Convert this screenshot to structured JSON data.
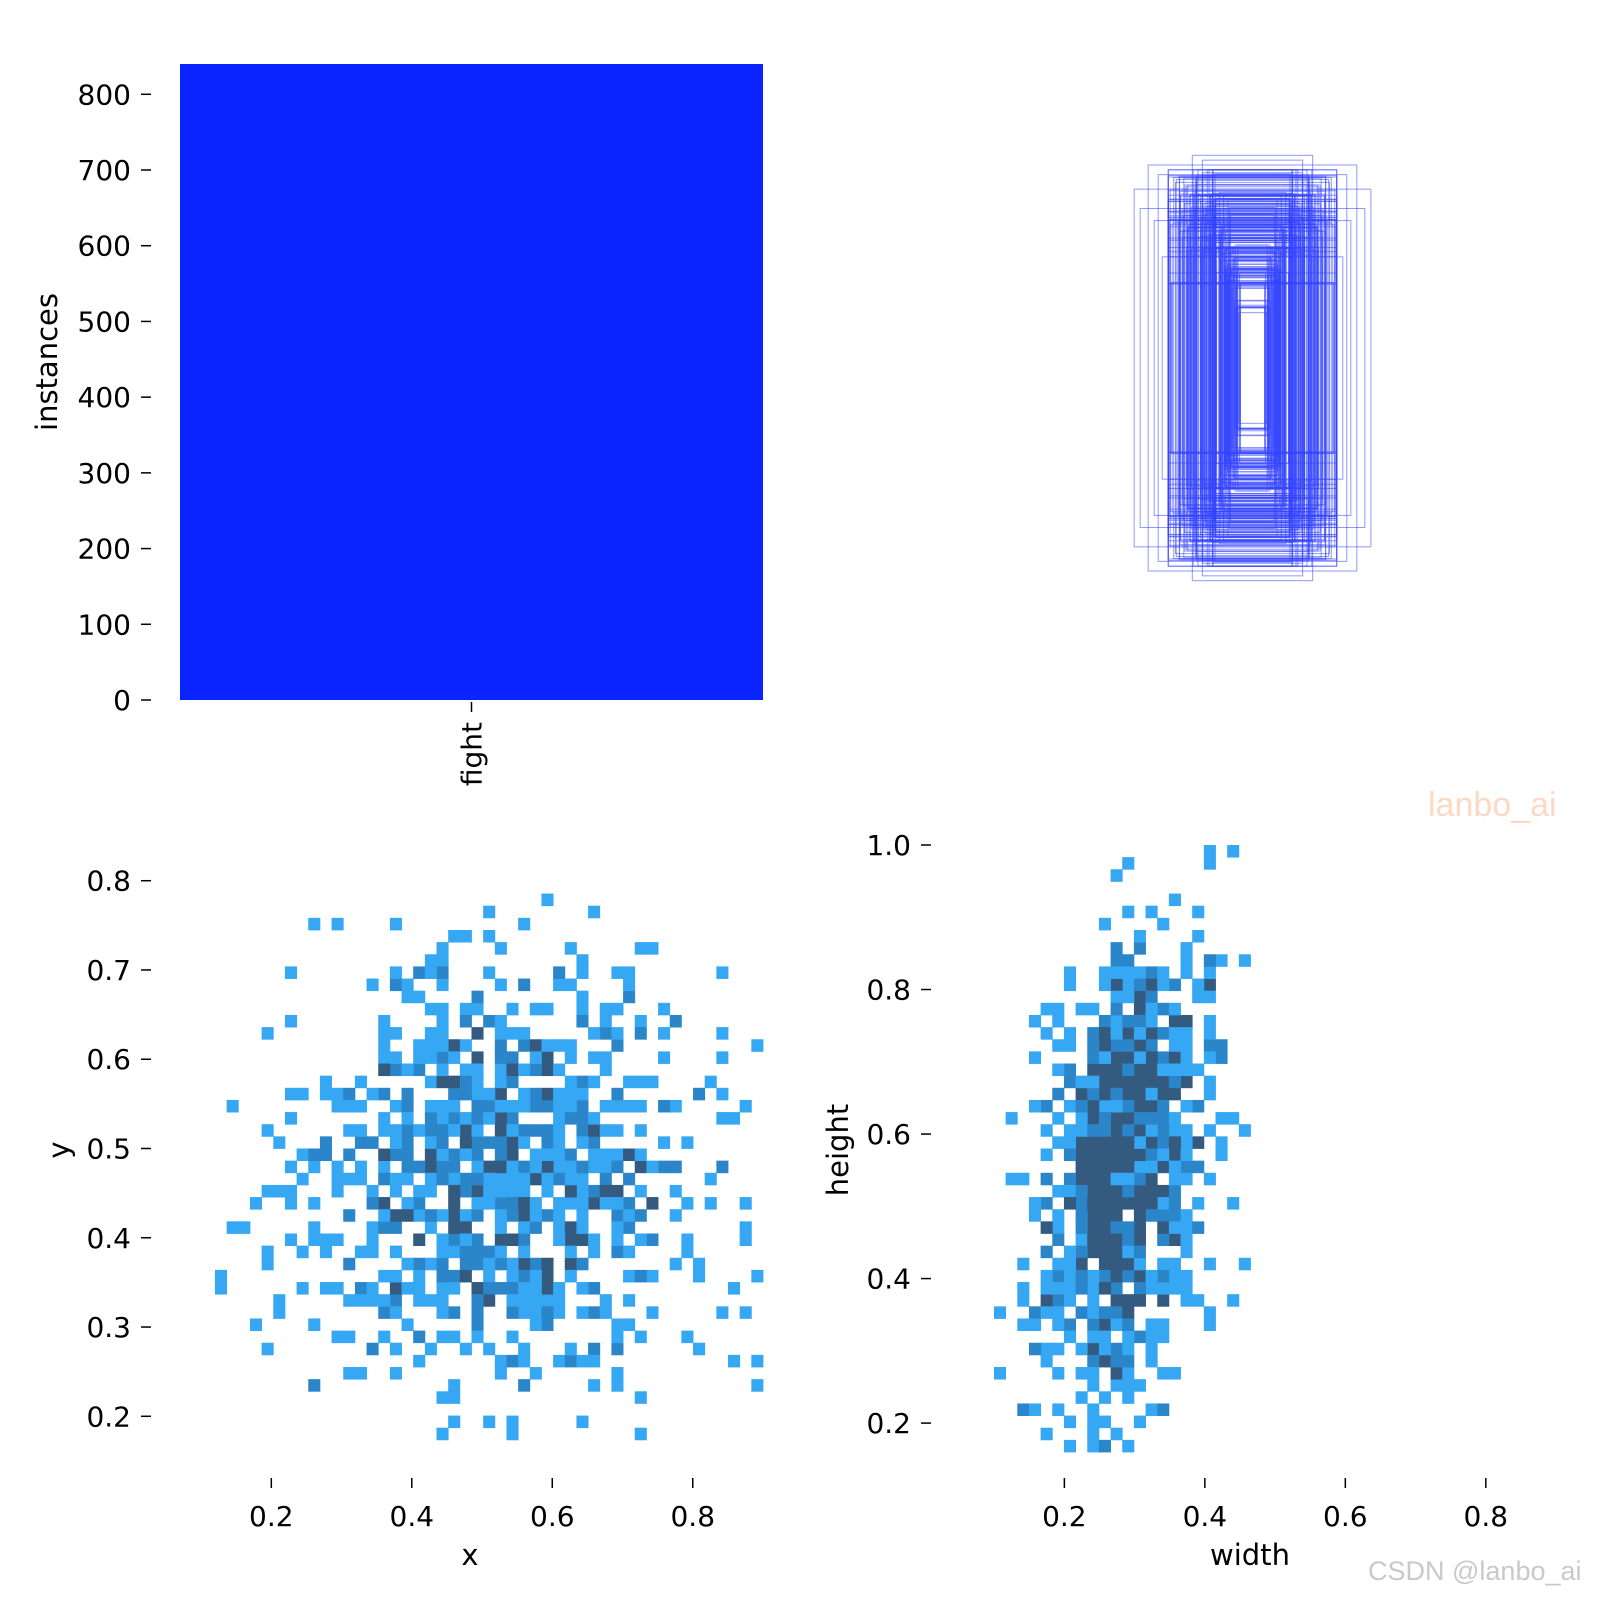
{
  "colors": {
    "bar": "#0a24ff",
    "box_stroke": "#3344ff",
    "hist_light": "#36a7f2",
    "hist_mid": "#2a86c8",
    "hist_dark": "#355a80",
    "axis": "#000000"
  },
  "chart_data": [
    {
      "type": "bar",
      "categories": [
        "fight"
      ],
      "values": [
        840
      ],
      "xlabel": "",
      "ylabel": "instances",
      "ylim": [
        0,
        840
      ],
      "yticks": [
        "0",
        "100",
        "200",
        "300",
        "400",
        "500",
        "600",
        "700",
        "800"
      ],
      "grid": false
    },
    {
      "type": "scatter",
      "subtype": "box-outlines",
      "description_note": "",
      "x_center": 0.5,
      "y_center": 0.5,
      "boxes": [
        {
          "w": 0.52,
          "h": 0.84
        },
        {
          "w": 0.47,
          "h": 0.8
        },
        {
          "w": 0.41,
          "h": 0.74
        },
        {
          "w": 0.36,
          "h": 0.71
        },
        {
          "w": 0.34,
          "h": 0.68
        },
        {
          "w": 0.31,
          "h": 0.65
        },
        {
          "w": 0.28,
          "h": 0.62
        },
        {
          "w": 0.26,
          "h": 0.6
        },
        {
          "w": 0.24,
          "h": 0.57
        },
        {
          "w": 0.22,
          "h": 0.55
        },
        {
          "w": 0.2,
          "h": 0.52
        },
        {
          "w": 0.18,
          "h": 0.5
        },
        {
          "w": 0.16,
          "h": 0.46
        },
        {
          "w": 0.14,
          "h": 0.42
        },
        {
          "w": 0.12,
          "h": 0.38
        },
        {
          "w": 0.1,
          "h": 0.33
        },
        {
          "w": 0.09,
          "h": 0.28
        },
        {
          "w": 0.56,
          "h": 0.66
        },
        {
          "w": 0.59,
          "h": 0.74
        },
        {
          "w": 0.49,
          "h": 0.61
        },
        {
          "w": 0.3,
          "h": 0.88
        },
        {
          "w": 0.25,
          "h": 0.86
        },
        {
          "w": 0.45,
          "h": 0.46
        },
        {
          "w": 0.4,
          "h": 0.6
        },
        {
          "w": 0.38,
          "h": 0.78
        },
        {
          "w": 0.33,
          "h": 0.75
        },
        {
          "w": 0.27,
          "h": 0.7
        },
        {
          "w": 0.21,
          "h": 0.72
        },
        {
          "w": 0.19,
          "h": 0.64
        },
        {
          "w": 0.15,
          "h": 0.58
        },
        {
          "w": 0.13,
          "h": 0.5
        },
        {
          "w": 0.11,
          "h": 0.44
        }
      ]
    },
    {
      "type": "heatmap",
      "xlabel": "x",
      "ylabel": "y",
      "xticks": [
        "0.2",
        "0.4",
        "0.6",
        "0.8"
      ],
      "yticks": [
        "0.2",
        "0.3",
        "0.4",
        "0.5",
        "0.6",
        "0.7",
        "0.8"
      ],
      "xlim": [
        0.07,
        0.9
      ],
      "ylim": [
        0.16,
        0.84
      ],
      "x_center": 0.52,
      "y_center": 0.47,
      "x_spread": 0.15,
      "y_spread": 0.12,
      "bins": 50
    },
    {
      "type": "heatmap",
      "xlabel": "width",
      "ylabel": "height",
      "xticks": [
        "0.2",
        "0.4",
        "0.6",
        "0.8"
      ],
      "yticks": [
        "0.2",
        "0.4",
        "0.6",
        "0.8",
        "1.0"
      ],
      "xlim": [
        0.05,
        0.88
      ],
      "ylim": [
        0.16,
        1.0
      ],
      "x_center": 0.24,
      "y_center": 0.52,
      "x_spread": 0.08,
      "y_spread": 0.15,
      "bins": 50
    }
  ],
  "watermarks": {
    "top": "lanbo_ai",
    "bottom": "CSDN @lanbo_ai"
  }
}
